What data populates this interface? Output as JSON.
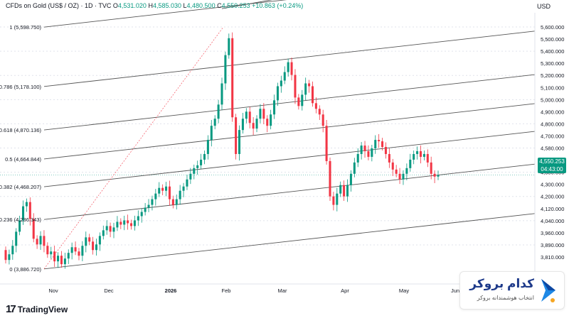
{
  "header": {
    "symbol": "CFDs on Gold (US$ / OZ) · 1D · TVC",
    "o_label": "O",
    "o": "4,531.020",
    "h_label": "H",
    "h": "4,585.030",
    "l_label": "L",
    "l": "4,480.500",
    "c_label": "C",
    "c": "4,550.253",
    "change": "+10.863 (+0.24%)"
  },
  "currency": "USD",
  "last_price": {
    "price": "4,550.253",
    "countdown": "04:43:00"
  },
  "branding": {
    "logo_mark": "17",
    "logo_text": "TradingView"
  },
  "broker": {
    "name": "کدام بروکر",
    "tagline": "انتخاب هوشمندانه بروکر"
  },
  "colors": {
    "up": "#089981",
    "down": "#f23645",
    "line": "#555555",
    "grid": "#e0e3eb"
  },
  "chart_data": {
    "type": "candlestick",
    "y_ticks": [
      "5,600.000",
      "5,500.000",
      "5,400.000",
      "5,300.000",
      "5,200.000",
      "5,100.000",
      "5,000.000",
      "4,900.000",
      "4,800.000",
      "4,700.000",
      "4,580.000",
      "4,460.000",
      "4,380.000",
      "4,300.000",
      "4,200.000",
      "4,120.000",
      "4,040.000",
      "3,960.000",
      "3,890.000",
      "3,810.000"
    ],
    "x_ticks": [
      "Nov",
      "Dec",
      "2026",
      "Feb",
      "Mar",
      "Apr",
      "May",
      "Jun"
    ],
    "fib_levels": [
      {
        "label": "1 (5,598.750)",
        "value": 5598.75
      },
      {
        "label": "0.786 (5,178.100)",
        "value": 5178.1
      },
      {
        "label": "0.618 (4,870.136)",
        "value": 4870.136
      },
      {
        "label": "0.5 (4,664.844)",
        "value": 4664.844
      },
      {
        "label": "0.382 (4,468.207)",
        "value": 4468.207
      },
      {
        "label": "0.236 (4,236.343)",
        "value": 4236.343
      },
      {
        "label": "0 (3,886.720)",
        "value": 3886.72
      }
    ],
    "candles_x_range": [
      8,
      616
    ],
    "candles_oc": [
      [
        4020,
        3950
      ],
      [
        3950,
        3990
      ],
      [
        3990,
        4050
      ],
      [
        4050,
        4150
      ],
      [
        4150,
        4230
      ],
      [
        4230,
        4330
      ],
      [
        4330,
        4360
      ],
      [
        4360,
        4240
      ],
      [
        4240,
        4100
      ],
      [
        4100,
        4060
      ],
      [
        4060,
        4120
      ],
      [
        4120,
        4050
      ],
      [
        4050,
        3990
      ],
      [
        3990,
        4010
      ],
      [
        4010,
        3940
      ],
      [
        3940,
        3980
      ],
      [
        3980,
        3920
      ],
      [
        3920,
        3960
      ],
      [
        3960,
        4000
      ],
      [
        4000,
        4040
      ],
      [
        4040,
        4010
      ],
      [
        4010,
        3980
      ],
      [
        3980,
        4050
      ],
      [
        4050,
        4110
      ],
      [
        4110,
        4080
      ],
      [
        4080,
        4020
      ],
      [
        4020,
        4060
      ],
      [
        4060,
        4120
      ],
      [
        4120,
        4160
      ],
      [
        4160,
        4190
      ],
      [
        4190,
        4150
      ],
      [
        4150,
        4180
      ],
      [
        4180,
        4220
      ],
      [
        4220,
        4200
      ],
      [
        4200,
        4230
      ],
      [
        4230,
        4210
      ],
      [
        4210,
        4190
      ],
      [
        4190,
        4230
      ],
      [
        4230,
        4260
      ],
      [
        4260,
        4290
      ],
      [
        4290,
        4320
      ],
      [
        4320,
        4340
      ],
      [
        4340,
        4380
      ],
      [
        4380,
        4420
      ],
      [
        4420,
        4460
      ],
      [
        4460,
        4440
      ],
      [
        4440,
        4470
      ],
      [
        4470,
        4380
      ],
      [
        4380,
        4340
      ],
      [
        4340,
        4380
      ],
      [
        4380,
        4440
      ],
      [
        4440,
        4470
      ],
      [
        4470,
        4520
      ],
      [
        4520,
        4560
      ],
      [
        4560,
        4600
      ],
      [
        4600,
        4620
      ],
      [
        4620,
        4660
      ],
      [
        4660,
        4700
      ],
      [
        4700,
        4800
      ],
      [
        4800,
        4900
      ],
      [
        4900,
        4950
      ],
      [
        4950,
        5050
      ],
      [
        5050,
        5200
      ],
      [
        5200,
        5400
      ],
      [
        5400,
        5520
      ],
      [
        5520,
        4960
      ],
      [
        4960,
        4700
      ],
      [
        4700,
        4870
      ],
      [
        4870,
        4950
      ],
      [
        4950,
        5000
      ],
      [
        5000,
        4920
      ],
      [
        4920,
        4880
      ],
      [
        4880,
        4950
      ],
      [
        4950,
        5020
      ],
      [
        5020,
        4950
      ],
      [
        4950,
        4900
      ],
      [
        4900,
        4980
      ],
      [
        4980,
        5080
      ],
      [
        5080,
        5180
      ],
      [
        5180,
        5220
      ],
      [
        5220,
        5280
      ],
      [
        5280,
        5350
      ],
      [
        5350,
        5260
      ],
      [
        5260,
        5100
      ],
      [
        5100,
        5040
      ],
      [
        5040,
        5120
      ],
      [
        5120,
        5200
      ],
      [
        5200,
        5180
      ],
      [
        5180,
        5060
      ],
      [
        5060,
        5020
      ],
      [
        5020,
        4980
      ],
      [
        4980,
        4900
      ],
      [
        4900,
        4650
      ],
      [
        4650,
        4400
      ],
      [
        4400,
        4340
      ],
      [
        4340,
        4420
      ],
      [
        4420,
        4480
      ],
      [
        4480,
        4400
      ],
      [
        4400,
        4480
      ],
      [
        4480,
        4560
      ],
      [
        4560,
        4640
      ],
      [
        4640,
        4700
      ],
      [
        4700,
        4760
      ],
      [
        4760,
        4720
      ],
      [
        4720,
        4680
      ],
      [
        4680,
        4740
      ],
      [
        4740,
        4800
      ],
      [
        4800,
        4790
      ],
      [
        4790,
        4750
      ],
      [
        4750,
        4700
      ],
      [
        4700,
        4640
      ],
      [
        4640,
        4590
      ],
      [
        4590,
        4560
      ],
      [
        4560,
        4520
      ],
      [
        4520,
        4560
      ],
      [
        4560,
        4600
      ],
      [
        4600,
        4660
      ],
      [
        4660,
        4700
      ],
      [
        4700,
        4720
      ],
      [
        4720,
        4680
      ],
      [
        4680,
        4700
      ],
      [
        4700,
        4640
      ],
      [
        4640,
        4560
      ],
      [
        4560,
        4540
      ],
      [
        4540,
        4550
      ]
    ],
    "ylim": [
      3780,
      5700
    ]
  }
}
